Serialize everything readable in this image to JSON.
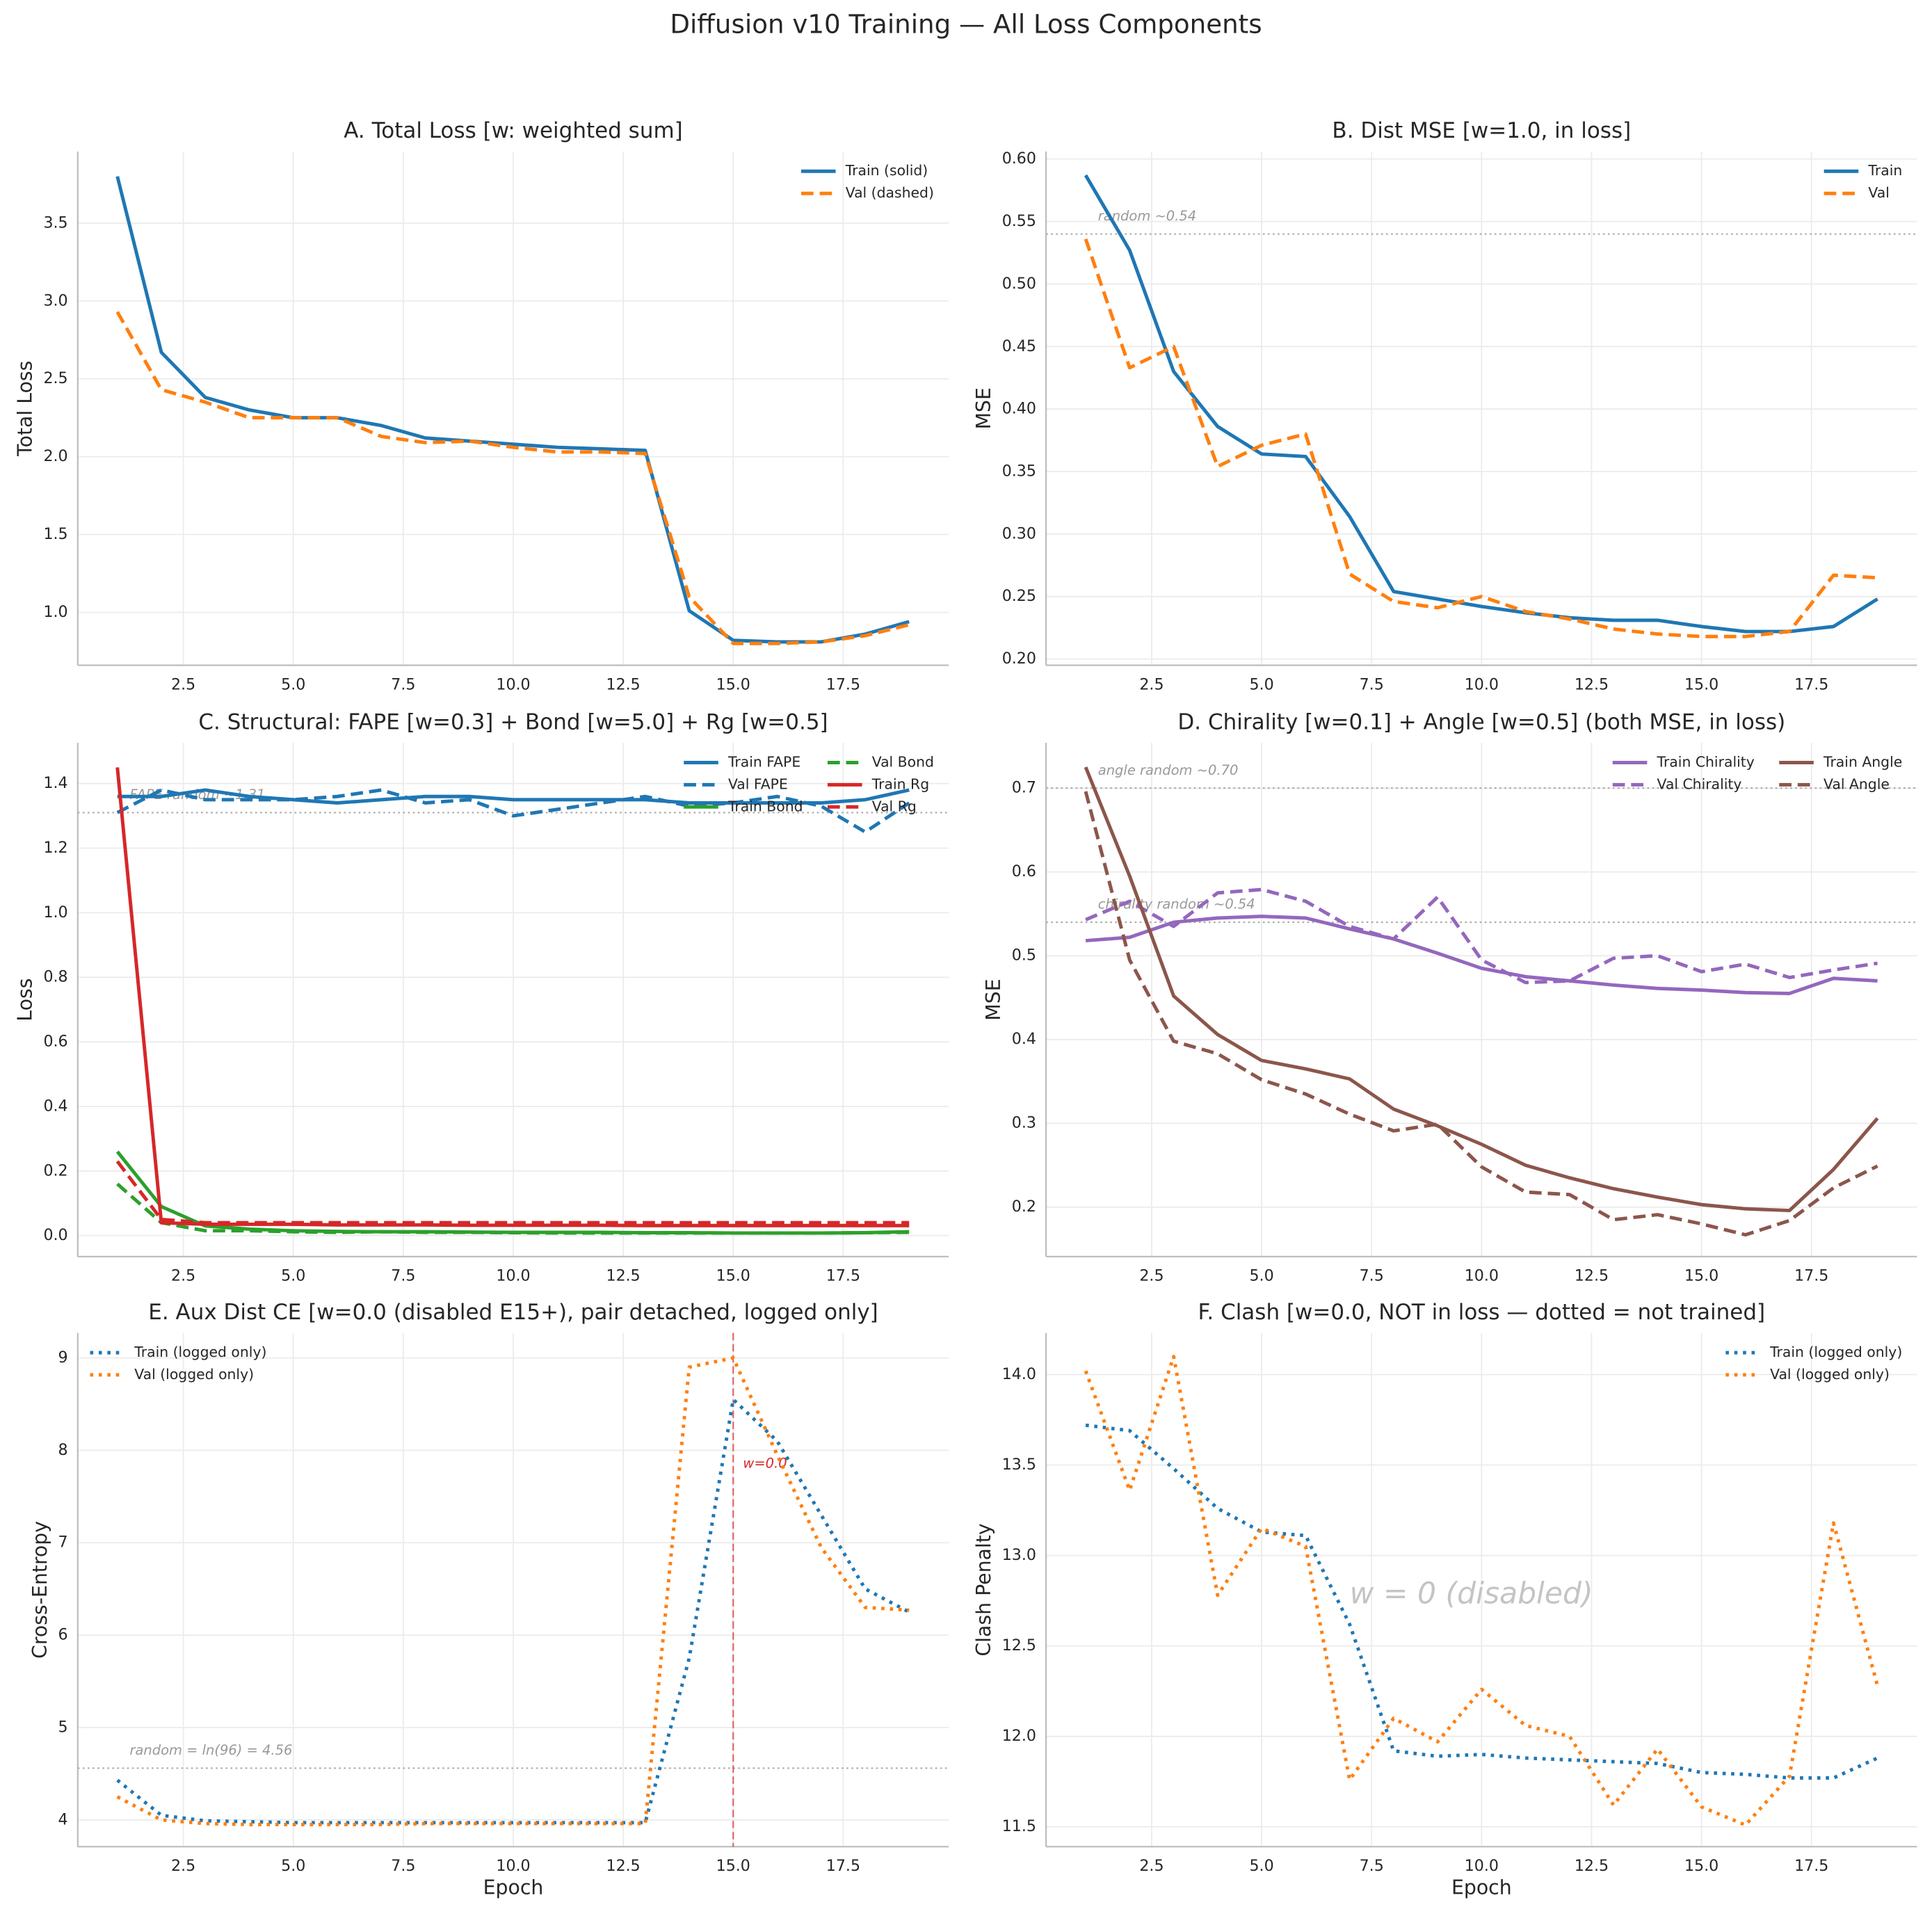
{
  "title": "Diffusion v10 Training — All Loss Components",
  "chart_data": [
    {
      "type": "line",
      "title": "A.  Total Loss  [w: weighted sum]",
      "ylabel": "Total Loss",
      "x": [
        1,
        2,
        3,
        4,
        5,
        6,
        7,
        8,
        9,
        10,
        11,
        12,
        13,
        14,
        15,
        16,
        17,
        18,
        19
      ],
      "xlim": [
        0.1,
        19.9
      ],
      "xticks": [
        2.5,
        {
          "value": 5,
          "label": "5.0"
        },
        7.5,
        {
          "value": 10,
          "label": "10.0"
        },
        12.5,
        {
          "value": 15,
          "label": "15.0"
        },
        17.5
      ],
      "ylim": [
        0.66,
        3.96
      ],
      "yticks": [
        {
          "value": 1,
          "label": "1.0"
        },
        1.5,
        {
          "value": 2,
          "label": "2.0"
        },
        2.5,
        {
          "value": 3,
          "label": "3.0"
        },
        3.5
      ],
      "grid": true,
      "legend": "upper right",
      "series": [
        {
          "name": "Train (solid)",
          "color": "#1f77b4",
          "dash": "solid",
          "values": [
            3.8,
            2.67,
            2.38,
            2.3,
            2.25,
            2.25,
            2.2,
            2.12,
            2.1,
            2.08,
            2.06,
            2.05,
            2.04,
            1.01,
            0.82,
            0.81,
            0.81,
            0.86,
            0.94
          ]
        },
        {
          "name": "Val (dashed)",
          "color": "#ff7f0e",
          "dash": "dashed",
          "values": [
            2.93,
            2.43,
            2.35,
            2.25,
            2.25,
            2.25,
            2.13,
            2.09,
            2.1,
            2.06,
            2.03,
            2.03,
            2.02,
            1.1,
            0.8,
            0.8,
            0.81,
            0.85,
            0.92
          ]
        }
      ]
    },
    {
      "type": "line",
      "title": "B.  Dist MSE  [w=1.0, in loss]",
      "ylabel": "MSE",
      "x": [
        1,
        2,
        3,
        4,
        5,
        6,
        7,
        8,
        9,
        10,
        11,
        12,
        13,
        14,
        15,
        16,
        17,
        18,
        19
      ],
      "xlim": [
        0.1,
        19.9
      ],
      "xticks": [
        2.5,
        {
          "value": 5,
          "label": "5.0"
        },
        7.5,
        {
          "value": 10,
          "label": "10.0"
        },
        12.5,
        {
          "value": 15,
          "label": "15.0"
        },
        17.5
      ],
      "ylim": [
        0.195,
        0.606
      ],
      "yticks": [
        {
          "value": 0.2,
          "label": "0.20"
        },
        0.25,
        {
          "value": 0.3,
          "label": "0.30"
        },
        0.35,
        {
          "value": 0.4,
          "label": "0.40"
        },
        0.45,
        {
          "value": 0.5,
          "label": "0.50"
        },
        0.55,
        {
          "value": 0.6,
          "label": "0.60"
        }
      ],
      "grid": true,
      "legend": "upper right",
      "hlines": [
        {
          "y": 0.54,
          "label": "random ~0.54"
        }
      ],
      "series": [
        {
          "name": "Train",
          "color": "#1f77b4",
          "dash": "solid",
          "values": [
            0.587,
            0.527,
            0.43,
            0.386,
            0.364,
            0.362,
            0.314,
            0.254,
            0.248,
            0.242,
            0.237,
            0.233,
            0.231,
            0.231,
            0.226,
            0.222,
            0.222,
            0.226,
            0.248
          ]
        },
        {
          "name": "Val",
          "color": "#ff7f0e",
          "dash": "dashed",
          "values": [
            0.536,
            0.433,
            0.45,
            0.354,
            0.371,
            0.38,
            0.268,
            0.246,
            0.241,
            0.25,
            0.238,
            0.232,
            0.224,
            0.22,
            0.218,
            0.218,
            0.222,
            0.267,
            0.265
          ]
        }
      ]
    },
    {
      "type": "line",
      "title": "C.  Structural: FAPE [w=0.3] + Bond [w=5.0] + Rg [w=0.5]",
      "ylabel": "Loss",
      "x": [
        1,
        2,
        3,
        4,
        5,
        6,
        7,
        8,
        9,
        10,
        11,
        12,
        13,
        14,
        15,
        16,
        17,
        18,
        19
      ],
      "xlim": [
        0.1,
        19.9
      ],
      "xticks": [
        2.5,
        {
          "value": 5,
          "label": "5.0"
        },
        7.5,
        {
          "value": 10,
          "label": "10.0"
        },
        12.5,
        {
          "value": 15,
          "label": "15.0"
        },
        17.5
      ],
      "ylim": [
        -0.065,
        1.526
      ],
      "yticks": [
        {
          "value": 0,
          "label": "0.0"
        },
        0.2,
        0.4,
        0.6,
        0.8,
        {
          "value": 1,
          "label": "1.0"
        },
        1.2,
        1.4
      ],
      "grid": true,
      "legend": "upper right",
      "legend_columns": 2,
      "hlines": [
        {
          "y": 1.31,
          "label": "FAPE random ~1.31"
        }
      ],
      "series": [
        {
          "name": "Train FAPE",
          "color": "#1f77b4",
          "dash": "solid",
          "values": [
            1.36,
            1.36,
            1.38,
            1.36,
            1.35,
            1.34,
            1.35,
            1.36,
            1.36,
            1.35,
            1.35,
            1.35,
            1.35,
            1.34,
            1.34,
            1.34,
            1.34,
            1.35,
            1.38
          ]
        },
        {
          "name": "Val FAPE",
          "color": "#1f77b4",
          "dash": "dashed",
          "values": [
            1.31,
            1.38,
            1.35,
            1.35,
            1.35,
            1.36,
            1.38,
            1.34,
            1.35,
            1.3,
            1.32,
            1.34,
            1.36,
            1.33,
            1.34,
            1.36,
            1.33,
            1.25,
            1.34
          ]
        },
        {
          "name": "Train Bond",
          "color": "#2ca02c",
          "dash": "solid",
          "values": [
            0.26,
            0.09,
            0.03,
            0.02,
            0.015,
            0.013,
            0.012,
            0.012,
            0.011,
            0.01,
            0.01,
            0.01,
            0.009,
            0.009,
            0.008,
            0.008,
            0.008,
            0.009,
            0.012
          ]
        },
        {
          "name": "Val Bond",
          "color": "#2ca02c",
          "dash": "dashed",
          "values": [
            0.16,
            0.04,
            0.015,
            0.015,
            0.012,
            0.01,
            0.012,
            0.01,
            0.01,
            0.009,
            0.008,
            0.008,
            0.008,
            0.008,
            0.008,
            0.008,
            0.008,
            0.009,
            0.01
          ]
        },
        {
          "name": "Train Rg",
          "color": "#d62728",
          "dash": "solid",
          "values": [
            1.45,
            0.04,
            0.035,
            0.035,
            0.035,
            0.033,
            0.033,
            0.033,
            0.032,
            0.032,
            0.032,
            0.032,
            0.031,
            0.031,
            0.031,
            0.031,
            0.031,
            0.031,
            0.031
          ]
        },
        {
          "name": "Val Rg",
          "color": "#d62728",
          "dash": "dashed",
          "values": [
            0.23,
            0.05,
            0.04,
            0.04,
            0.04,
            0.04,
            0.04,
            0.04,
            0.04,
            0.04,
            0.04,
            0.04,
            0.04,
            0.04,
            0.04,
            0.04,
            0.04,
            0.04,
            0.04
          ]
        }
      ]
    },
    {
      "type": "line",
      "title": "D.  Chirality [w=0.1] + Angle [w=0.5]  (both MSE, in loss)",
      "ylabel": "MSE",
      "x": [
        1,
        2,
        3,
        4,
        5,
        6,
        7,
        8,
        9,
        10,
        11,
        12,
        13,
        14,
        15,
        16,
        17,
        18,
        19
      ],
      "xlim": [
        0.1,
        19.9
      ],
      "xticks": [
        2.5,
        {
          "value": 5,
          "label": "5.0"
        },
        7.5,
        {
          "value": 10,
          "label": "10.0"
        },
        12.5,
        {
          "value": 15,
          "label": "15.0"
        },
        17.5
      ],
      "ylim": [
        0.141,
        0.754
      ],
      "yticks": [
        0.2,
        0.3,
        0.4,
        0.5,
        0.6,
        0.7
      ],
      "grid": true,
      "legend": "upper right",
      "legend_columns": 2,
      "hlines": [
        {
          "y": 0.7,
          "label": "angle random ~0.70"
        },
        {
          "y": 0.54,
          "label": "chirality random ~0.54"
        }
      ],
      "series": [
        {
          "name": "Train Chirality",
          "color": "#9467bd",
          "dash": "solid",
          "values": [
            0.518,
            0.522,
            0.54,
            0.545,
            0.547,
            0.545,
            0.532,
            0.52,
            0.503,
            0.485,
            0.475,
            0.47,
            0.465,
            0.461,
            0.459,
            0.456,
            0.455,
            0.473,
            0.47
          ]
        },
        {
          "name": "Val Chirality",
          "color": "#9467bd",
          "dash": "dashed",
          "values": [
            0.543,
            0.565,
            0.535,
            0.575,
            0.579,
            0.565,
            0.535,
            0.52,
            0.57,
            0.495,
            0.468,
            0.47,
            0.497,
            0.5,
            0.481,
            0.49,
            0.474,
            0.483,
            0.491
          ]
        },
        {
          "name": "Train Angle",
          "color": "#8c564b",
          "dash": "solid",
          "values": [
            0.725,
            0.595,
            0.452,
            0.406,
            0.375,
            0.365,
            0.353,
            0.317,
            0.297,
            0.275,
            0.25,
            0.235,
            0.222,
            0.212,
            0.203,
            0.198,
            0.196,
            0.245,
            0.306
          ]
        },
        {
          "name": "Val Angle",
          "color": "#8c564b",
          "dash": "dashed",
          "values": [
            0.696,
            0.495,
            0.398,
            0.383,
            0.352,
            0.335,
            0.311,
            0.291,
            0.299,
            0.248,
            0.218,
            0.215,
            0.185,
            0.191,
            0.18,
            0.167,
            0.184,
            0.223,
            0.249
          ]
        }
      ]
    },
    {
      "type": "line",
      "title": "E.  Aux Dist CE  [w=0.0 (disabled E15+), pair detached, logged only]",
      "ylabel": "Cross-Entropy",
      "xlabel": "Epoch",
      "x": [
        1,
        2,
        3,
        4,
        5,
        6,
        7,
        8,
        9,
        10,
        11,
        12,
        13,
        14,
        15,
        16,
        17,
        18,
        19
      ],
      "xlim": [
        0.1,
        19.9
      ],
      "xticks": [
        2.5,
        {
          "value": 5,
          "label": "5.0"
        },
        7.5,
        {
          "value": 10,
          "label": "10.0"
        },
        12.5,
        {
          "value": 15,
          "label": "15.0"
        },
        17.5
      ],
      "ylim": [
        3.71,
        9.27
      ],
      "yticks": [
        4,
        5,
        6,
        7,
        8,
        9
      ],
      "grid": true,
      "legend": "upper left",
      "hlines": [
        {
          "y": 4.56,
          "label": "random = ln(96) = 4.56"
        }
      ],
      "vlines": [
        {
          "x": 15,
          "label": "w=0.0",
          "color": "#d62728"
        }
      ],
      "series": [
        {
          "name": "Train (logged only)",
          "color": "#1f77b4",
          "dash": "dotted",
          "values": [
            4.43,
            4.05,
            3.99,
            3.98,
            3.97,
            3.97,
            3.97,
            3.97,
            3.97,
            3.97,
            3.97,
            3.97,
            3.97,
            5.75,
            8.55,
            8.1,
            7.3,
            6.5,
            6.25
          ]
        },
        {
          "name": "Val (logged only)",
          "color": "#ff7f0e",
          "dash": "dotted",
          "values": [
            4.25,
            4.0,
            3.96,
            3.95,
            3.95,
            3.95,
            3.95,
            3.96,
            3.96,
            3.96,
            3.96,
            3.96,
            3.96,
            8.9,
            9.0,
            7.95,
            6.95,
            6.3,
            6.27
          ]
        }
      ]
    },
    {
      "type": "line",
      "title": "F.  Clash  [w=0.0, NOT in loss — dotted = not trained]",
      "ylabel": "Clash Penalty",
      "xlabel": "Epoch",
      "x": [
        1,
        2,
        3,
        4,
        5,
        6,
        7,
        8,
        9,
        10,
        11,
        12,
        13,
        14,
        15,
        16,
        17,
        18,
        19
      ],
      "xlim": [
        0.1,
        19.9
      ],
      "xticks": [
        2.5,
        {
          "value": 5,
          "label": "5.0"
        },
        7.5,
        {
          "value": 10,
          "label": "10.0"
        },
        12.5,
        {
          "value": 15,
          "label": "15.0"
        },
        17.5
      ],
      "ylim": [
        11.39,
        14.23
      ],
      "yticks": [
        11.5,
        {
          "value": 12,
          "label": "12.0"
        },
        12.5,
        {
          "value": 13,
          "label": "13.0"
        },
        13.5,
        {
          "value": 14,
          "label": "14.0"
        }
      ],
      "grid": true,
      "legend": "upper right",
      "texts": [
        {
          "text": "w = 0  (disabled)",
          "x": 7,
          "y": 12.78
        }
      ],
      "series": [
        {
          "name": "Train (logged only)",
          "color": "#1f77b4",
          "dash": "dotted",
          "values": [
            13.72,
            13.69,
            13.48,
            13.26,
            13.13,
            13.11,
            12.62,
            11.92,
            11.89,
            11.9,
            11.88,
            11.87,
            11.86,
            11.85,
            11.8,
            11.79,
            11.77,
            11.77,
            11.88
          ]
        },
        {
          "name": "Val (logged only)",
          "color": "#ff7f0e",
          "dash": "dotted",
          "values": [
            14.02,
            13.36,
            14.1,
            12.78,
            13.15,
            13.05,
            11.76,
            12.1,
            11.97,
            12.26,
            12.06,
            12.0,
            11.62,
            11.93,
            11.61,
            11.51,
            11.78,
            13.18,
            12.28
          ]
        }
      ]
    }
  ]
}
